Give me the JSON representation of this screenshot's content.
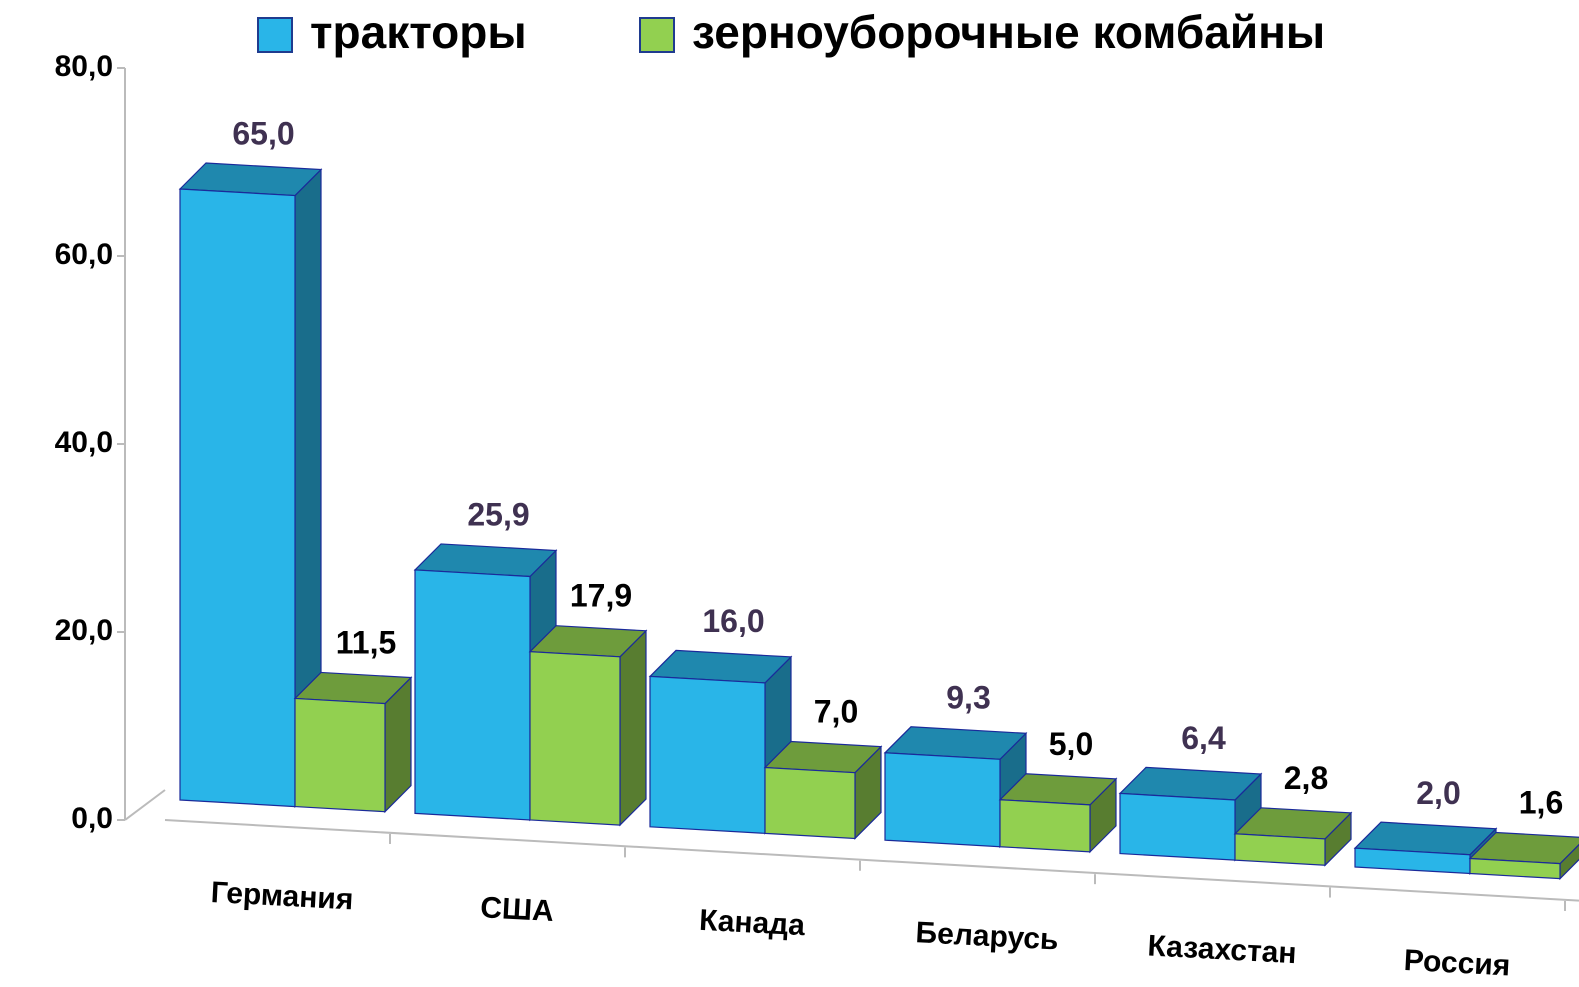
{
  "chart_data": {
    "type": "bar3d",
    "categories": [
      "Германия",
      "США",
      "Канада",
      "Беларусь",
      "Казахстан",
      "Россия"
    ],
    "series": [
      {
        "name": "тракторы",
        "color": "#29b5e8",
        "values": [
          65.0,
          25.9,
          16.0,
          9.3,
          6.4,
          2.0
        ],
        "value_labels": [
          "65,0",
          "25,9",
          "16,0",
          "9,3",
          "6,4",
          "2,0"
        ]
      },
      {
        "name": "зерноуборочные комбайны",
        "color": "#92d050",
        "values": [
          11.5,
          17.9,
          7.0,
          5.0,
          2.8,
          1.6
        ],
        "value_labels": [
          "11,5",
          "17,9",
          "7,0",
          "5,0",
          "2,8",
          "1,6"
        ]
      }
    ],
    "ylim": [
      0,
      80
    ],
    "yticks": [
      {
        "value": 0,
        "label": "0,0"
      },
      {
        "value": 20,
        "label": "20,0"
      },
      {
        "value": 40,
        "label": "40,0"
      },
      {
        "value": 60,
        "label": "60,0"
      },
      {
        "value": 80,
        "label": "80,0"
      }
    ],
    "legend": "top"
  }
}
